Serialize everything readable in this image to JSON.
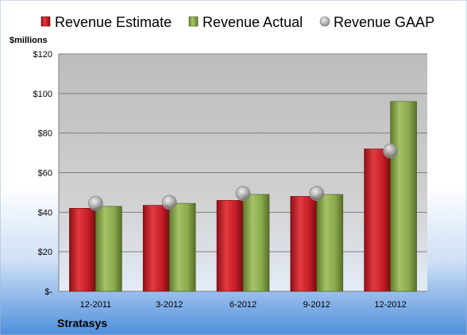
{
  "chart_data": {
    "type": "bar",
    "unit_label": "$millions",
    "company": "Stratasys",
    "categories": [
      "12-2011",
      "3-2012",
      "6-2012",
      "9-2012",
      "12-2012"
    ],
    "series": [
      {
        "name": "Revenue Estimate",
        "kind": "bar",
        "color": "#d0202a",
        "values": [
          42,
          43.5,
          46,
          48,
          72
        ]
      },
      {
        "name": "Revenue Actual",
        "kind": "bar",
        "color": "#8aaa4c",
        "values": [
          43,
          44.5,
          49,
          49,
          96
        ]
      },
      {
        "name": "Revenue GAAP",
        "kind": "marker",
        "color": "#a0a0a0",
        "values": [
          44.5,
          45,
          49.5,
          49.5,
          71
        ]
      }
    ],
    "yticks": [
      {
        "value": 0,
        "label": "$-"
      },
      {
        "value": 20,
        "label": "$20"
      },
      {
        "value": 40,
        "label": "$40"
      },
      {
        "value": 60,
        "label": "$60"
      },
      {
        "value": 80,
        "label": "$80"
      },
      {
        "value": 100,
        "label": "$100"
      },
      {
        "value": 120,
        "label": "$120"
      }
    ],
    "ylim": [
      0,
      120
    ],
    "grid": true,
    "legend_position": "top"
  }
}
